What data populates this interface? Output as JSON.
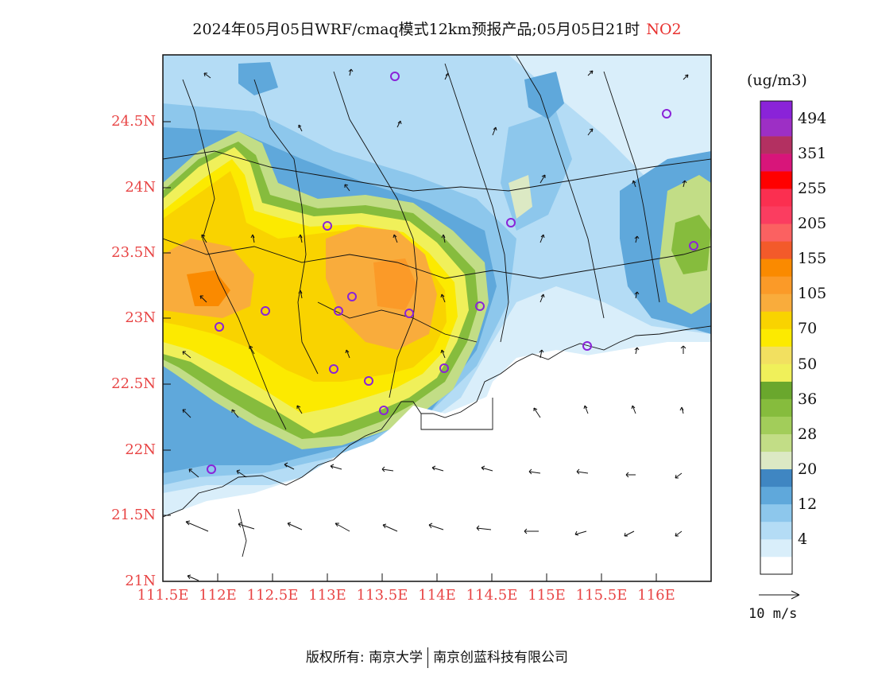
{
  "title": {
    "main": "2024年05月05日WRF/cmaq模式12km预报产品;05月05日21时",
    "pollutant": "NO2"
  },
  "axes": {
    "lat_labels": [
      "24.5N",
      "24N",
      "23.5N",
      "23N",
      "22.5N",
      "22N",
      "21.5N",
      "21N"
    ],
    "lon_labels": [
      "111.5E",
      "112E",
      "112.5E",
      "113E",
      "113.5E",
      "114E",
      "114.5E",
      "115E",
      "115.5E",
      "116E"
    ]
  },
  "colorbar": {
    "unit": "(ug/m3)",
    "levels": [
      {
        "label": "",
        "color": "#ffffff"
      },
      {
        "label": "4",
        "color": "#d9eefa"
      },
      {
        "label": "",
        "color": "#b4dcf5"
      },
      {
        "label": "12",
        "color": "#8dc7ec"
      },
      {
        "label": "",
        "color": "#5fa8db"
      },
      {
        "label": "20",
        "color": "#3f86c2"
      },
      {
        "label": "",
        "color": "#dce9c4"
      },
      {
        "label": "28",
        "color": "#c2dd86"
      },
      {
        "label": "",
        "color": "#a2cd5a"
      },
      {
        "label": "36",
        "color": "#86bc3d"
      },
      {
        "label": "",
        "color": "#6aa72d"
      },
      {
        "label": "50",
        "color": "#f0f05a"
      },
      {
        "label": "",
        "color": "#f2e060"
      },
      {
        "label": "70",
        "color": "#fcea00"
      },
      {
        "label": "",
        "color": "#f9d300"
      },
      {
        "label": "105",
        "color": "#f9ac3c"
      },
      {
        "label": "",
        "color": "#fb9a28"
      },
      {
        "label": "155",
        "color": "#fa8a00"
      },
      {
        "label": "",
        "color": "#f35a2a"
      },
      {
        "label": "205",
        "color": "#fb6161"
      },
      {
        "label": "",
        "color": "#fb3d60"
      },
      {
        "label": "255",
        "color": "#fb2f50"
      },
      {
        "label": "",
        "color": "#ff0000"
      },
      {
        "label": "351",
        "color": "#d8157a"
      },
      {
        "label": "",
        "color": "#b33061"
      },
      {
        "label": "494",
        "color": "#9d2fc5"
      },
      {
        "label": "",
        "color": "#8a23d8"
      }
    ]
  },
  "wind_reference": {
    "label": "10  m/s"
  },
  "footer": {
    "copyright": "版权所有:",
    "org1": "南京大学",
    "org2": "南京创蓝科技有限公司"
  }
}
